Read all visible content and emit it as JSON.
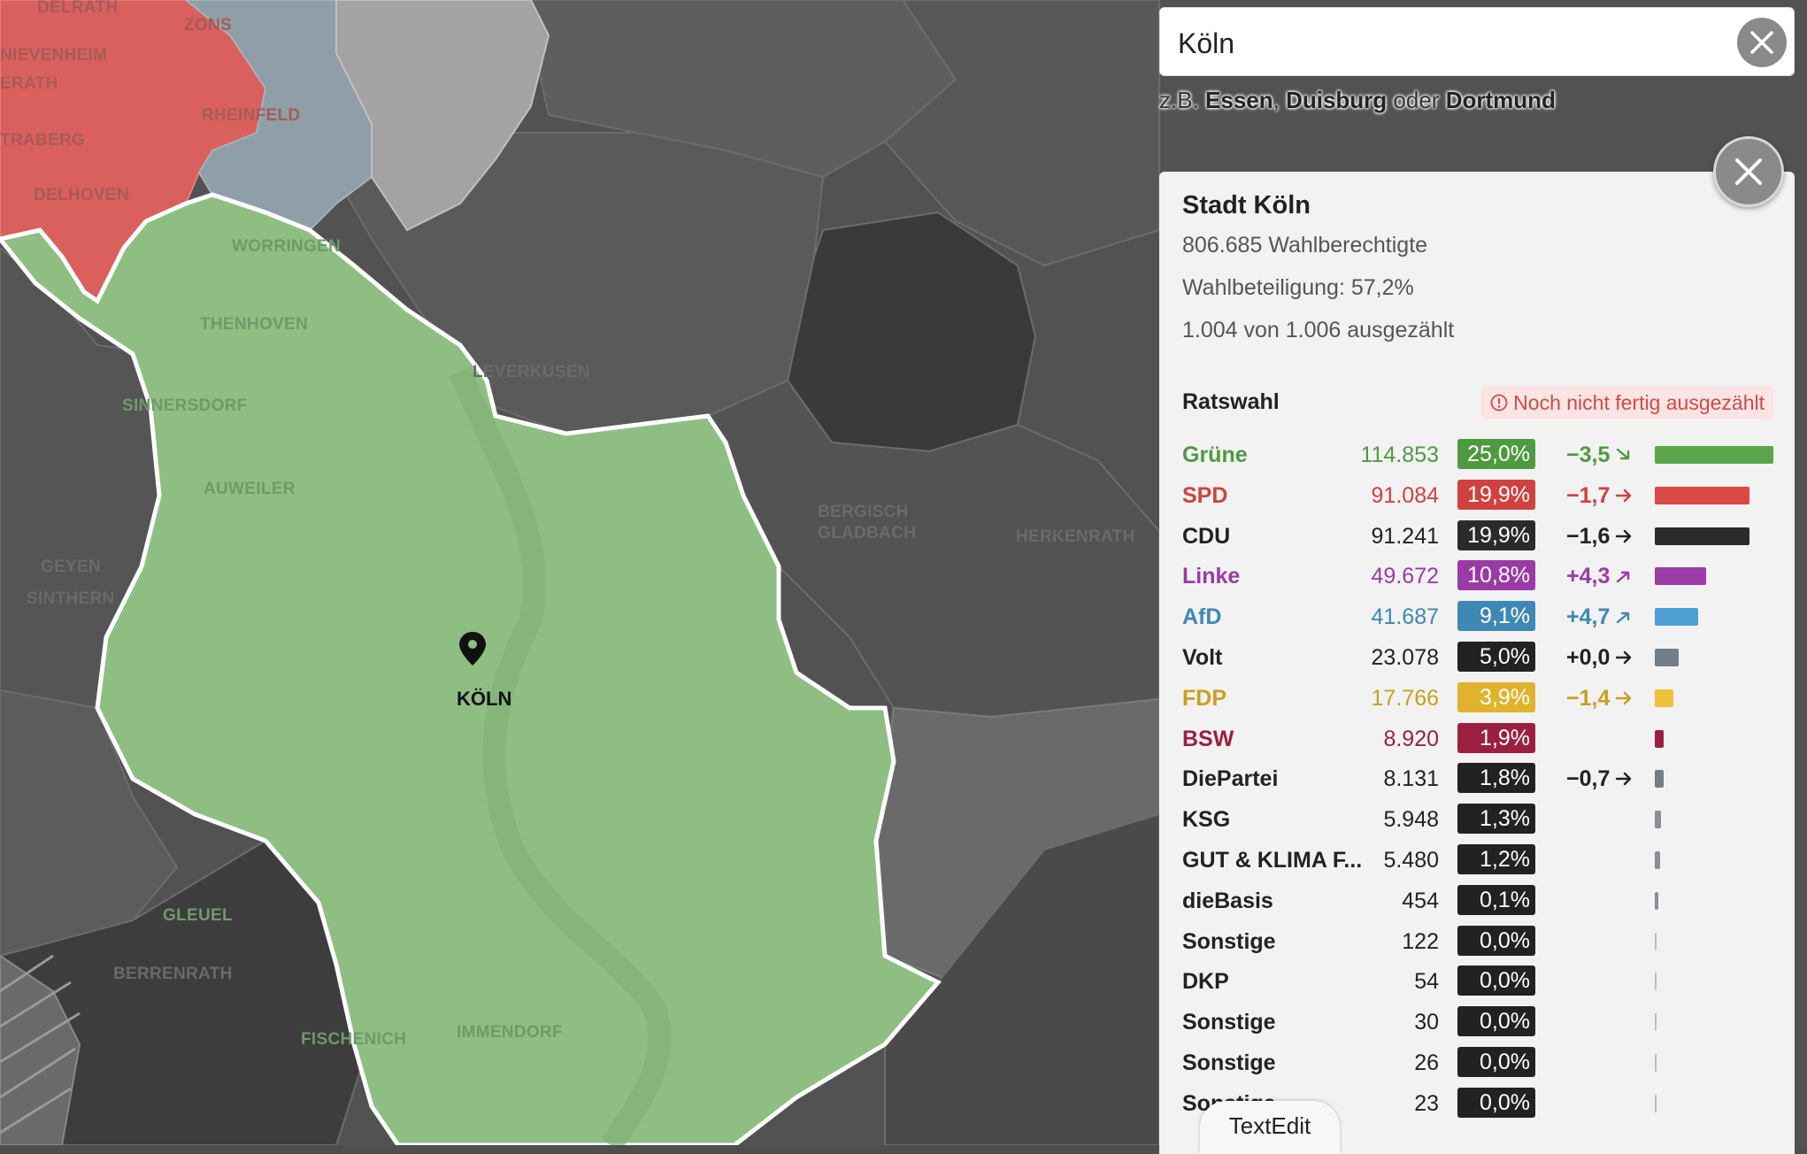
{
  "search": {
    "value": "Köln",
    "hint_prefix": "z.B. ",
    "hint_city1": "Essen",
    "hint_sep": ", ",
    "hint_city2": "Duisburg",
    "hint_or": " oder ",
    "hint_city3": "Dortmund"
  },
  "map": {
    "labels": [
      "DELRATH",
      "ZONS",
      "NIEVENHEIM",
      "ERATH",
      "RHEINFELD",
      "TRABERG",
      "DELHOVEN",
      "WORRINGEN",
      "THENHOVEN",
      "LEVERKUSEN",
      "SINNERSDORF",
      "AUWEILER",
      "BERGISCH",
      "GLADBACH",
      "HERKENRATH",
      "GEYEN",
      "SINTHERN",
      "GLEUEL",
      "BERRENRATH",
      "FISCHENICH",
      "IMMENDORF"
    ],
    "city_label": "KÖLN",
    "selected_color": "#8fbe83",
    "neighbour_red": "#d9605d",
    "neighbour_blue": "#8f9ea7"
  },
  "panel": {
    "title": "Stadt Köln",
    "eligible": "806.685 Wahlberechtigte",
    "turnout": "Wahlbeteiligung: 57,2%",
    "counted": "1.004 von 1.006 ausgezählt",
    "section_title": "Ratswahl",
    "status": "Noch nicht fertig ausgezählt"
  },
  "parties": [
    {
      "name": "Grüne",
      "votes": "114.853",
      "pct": "25,0%",
      "share": 25.0,
      "diff": "−3,5",
      "trend": "down",
      "color": "#4e9a40",
      "name_color": "#4e9a40",
      "bar_color": "#5aa64a"
    },
    {
      "name": "SPD",
      "votes": "91.084",
      "pct": "19,9%",
      "share": 19.9,
      "diff": "−1,7",
      "trend": "right",
      "color": "#d0423f",
      "name_color": "#d0423f",
      "bar_color": "#da4a45"
    },
    {
      "name": "CDU",
      "votes": "91.241",
      "pct": "19,9%",
      "share": 19.9,
      "diff": "−1,6",
      "trend": "right",
      "color": "#2b2b2b",
      "name_color": "#222222",
      "bar_color": "#2b2b2b"
    },
    {
      "name": "Linke",
      "votes": "49.672",
      "pct": "10,8%",
      "share": 10.8,
      "diff": "+4,3",
      "trend": "up",
      "color": "#9a3aa6",
      "name_color": "#9a3aa6",
      "bar_color": "#9b3ba6"
    },
    {
      "name": "AfD",
      "votes": "41.687",
      "pct": "9,1%",
      "share": 9.1,
      "diff": "+4,7",
      "trend": "up",
      "color": "#3f88b3",
      "name_color": "#3f88b3",
      "bar_color": "#4d9fd6"
    },
    {
      "name": "Volt",
      "votes": "23.078",
      "pct": "5,0%",
      "share": 5.0,
      "diff": "+0,0",
      "trend": "right",
      "color": "#222222",
      "name_color": "#222222",
      "bar_color": "#727e88"
    },
    {
      "name": "FDP",
      "votes": "17.766",
      "pct": "3,9%",
      "share": 3.9,
      "diff": "−1,4",
      "trend": "right",
      "color": "#e0b32c",
      "name_color": "#c9a020",
      "bar_color": "#eec13a"
    },
    {
      "name": "BSW",
      "votes": "8.920",
      "pct": "1,9%",
      "share": 1.9,
      "diff": "",
      "trend": "",
      "color": "#9b2040",
      "name_color": "#9b2040",
      "bar_color": "#9b2040"
    },
    {
      "name": "DiePartei",
      "votes": "8.131",
      "pct": "1,8%",
      "share": 1.8,
      "diff": "−0,7",
      "trend": "right",
      "color": "#222222",
      "name_color": "#222222",
      "bar_color": "#727e88"
    },
    {
      "name": "KSG",
      "votes": "5.948",
      "pct": "1,3%",
      "share": 1.3,
      "diff": "",
      "trend": "",
      "color": "#222222",
      "name_color": "#222222",
      "bar_color": "#8a8f94"
    },
    {
      "name": "GUT & KLIMA F...",
      "votes": "5.480",
      "pct": "1,2%",
      "share": 1.2,
      "diff": "",
      "trend": "",
      "color": "#222222",
      "name_color": "#222222",
      "bar_color": "#8a8f94"
    },
    {
      "name": "dieBasis",
      "votes": "454",
      "pct": "0,1%",
      "share": 0.1,
      "diff": "",
      "trend": "",
      "color": "#222222",
      "name_color": "#222222",
      "bar_color": "#8a8f94"
    },
    {
      "name": "Sonstige",
      "votes": "122",
      "pct": "0,0%",
      "share": 0.0,
      "diff": "",
      "trend": "",
      "color": "#222222",
      "name_color": "#222222",
      "bar_color": "#8a8f94"
    },
    {
      "name": "DKP",
      "votes": "54",
      "pct": "0,0%",
      "share": 0.0,
      "diff": "",
      "trend": "",
      "color": "#222222",
      "name_color": "#222222",
      "bar_color": "#8a8f94"
    },
    {
      "name": "Sonstige",
      "votes": "30",
      "pct": "0,0%",
      "share": 0.0,
      "diff": "",
      "trend": "",
      "color": "#222222",
      "name_color": "#222222",
      "bar_color": "#8a8f94"
    },
    {
      "name": "Sonstige",
      "votes": "26",
      "pct": "0,0%",
      "share": 0.0,
      "diff": "",
      "trend": "",
      "color": "#222222",
      "name_color": "#222222",
      "bar_color": "#8a8f94"
    },
    {
      "name": "Sonstige",
      "votes": "23",
      "pct": "0,0%",
      "share": 0.0,
      "diff": "",
      "trend": "",
      "color": "#222222",
      "name_color": "#222222",
      "bar_color": "#8a8f94"
    }
  ],
  "dock": {
    "textedit": "TextEdit"
  }
}
